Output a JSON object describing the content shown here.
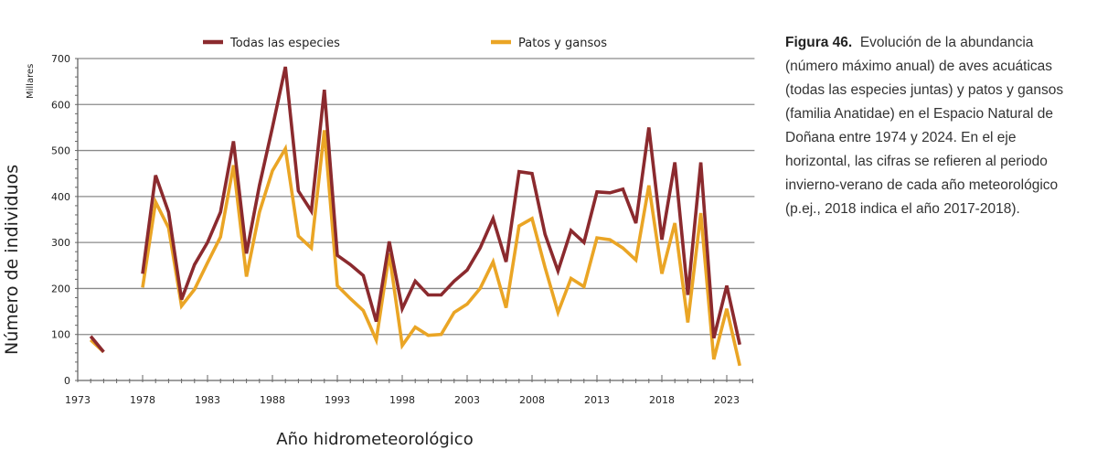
{
  "chart_data": {
    "type": "line",
    "title": "",
    "xlabel": "Año hidrometeorológico",
    "ylabel": "Número de individuos",
    "yunit": "Millares",
    "ylim": [
      0,
      700
    ],
    "xlim": [
      1973,
      2025
    ],
    "yticks": [
      0,
      100,
      200,
      300,
      400,
      500,
      600,
      700
    ],
    "xticks": [
      1973,
      1978,
      1983,
      1988,
      1993,
      1998,
      2003,
      2008,
      2013,
      2018,
      2023
    ],
    "grid": true,
    "legend_position": "top",
    "x": [
      1974,
      1975,
      1976,
      1977,
      1978,
      1979,
      1980,
      1981,
      1982,
      1983,
      1984,
      1985,
      1986,
      1987,
      1988,
      1989,
      1990,
      1991,
      1992,
      1993,
      1994,
      1995,
      1996,
      1997,
      1998,
      1999,
      2000,
      2001,
      2002,
      2003,
      2004,
      2005,
      2006,
      2007,
      2008,
      2009,
      2010,
      2011,
      2012,
      2013,
      2014,
      2015,
      2016,
      2017,
      2018,
      2019,
      2020,
      2021,
      2022,
      2023,
      2024
    ],
    "series": [
      {
        "name": "Todas las especies",
        "color": "#8B2A2E",
        "values": [
          96,
          62,
          null,
          null,
          232,
          446,
          366,
          176,
          252,
          300,
          366,
          520,
          276,
          424,
          550,
          682,
          412,
          368,
          632,
          272,
          252,
          228,
          128,
          302,
          156,
          216,
          186,
          186,
          216,
          240,
          288,
          352,
          258,
          454,
          450,
          318,
          238,
          326,
          300,
          410,
          408,
          416,
          342,
          550,
          306,
          474,
          186,
          474,
          92,
          206,
          78
        ]
      },
      {
        "name": "Patos y gansos",
        "color": "#EAA525",
        "values": [
          88,
          62,
          null,
          null,
          202,
          388,
          332,
          162,
          198,
          256,
          312,
          468,
          226,
          366,
          456,
          504,
          314,
          288,
          544,
          206,
          178,
          152,
          88,
          276,
          76,
          116,
          98,
          100,
          148,
          166,
          200,
          258,
          158,
          336,
          352,
          246,
          148,
          222,
          204,
          310,
          306,
          288,
          262,
          424,
          232,
          342,
          126,
          364,
          46,
          156,
          32
        ]
      }
    ]
  },
  "caption": {
    "figure_label": "Figura 46.",
    "text": "Evolución de la abundancia (número máximo anual) de aves acuáticas (todas las especies juntas) y patos y gansos (familia Anatidae) en el Espacio Natural de Doñana entre 1974 y 2024. En el eje horizontal, las cifras se refieren al periodo invierno-verano de cada año meteorológico (p.ej., 2018 indica el año 2017-2018)."
  },
  "colors": {
    "grid": "#8a8a8a",
    "axis": "#666666"
  }
}
